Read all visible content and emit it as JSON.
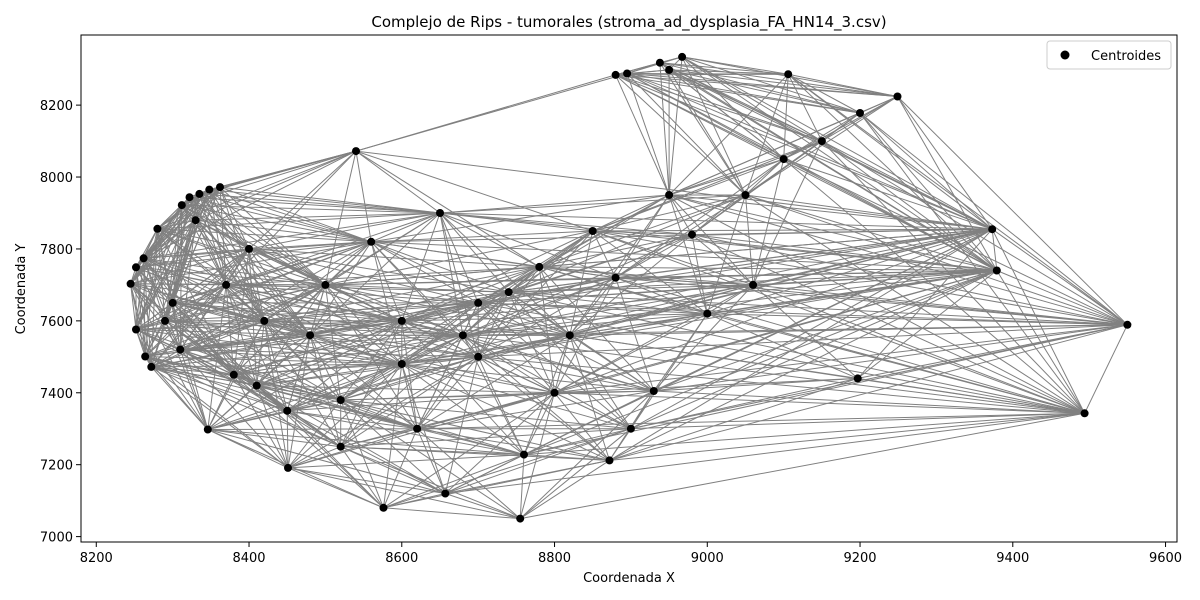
{
  "chart_data": {
    "type": "scatter",
    "title": "Complejo de Rips - tumorales (stroma_ad_dysplasia_FA_HN14_3.csv)",
    "xlabel": "Coordenada X",
    "ylabel": "Coordenada Y",
    "xlim": [
      8180,
      9615
    ],
    "ylim": [
      6985,
      8395
    ],
    "xticks": [
      8200,
      8400,
      8600,
      8800,
      9000,
      9200,
      9400,
      9600
    ],
    "yticks": [
      7000,
      7200,
      7400,
      7600,
      7800,
      8000,
      8200
    ],
    "grid": false,
    "legend": {
      "position": "top-right",
      "entries": [
        "Centroides"
      ]
    },
    "colors": {
      "points": "#000000",
      "edges": "#808080",
      "frame": "#000000"
    },
    "series": [
      {
        "name": "Centroides",
        "x": [
          8245,
          8252,
          8252,
          8262,
          8264,
          8272,
          8280,
          8312,
          8322,
          8335,
          8348,
          8362,
          8346,
          8451,
          8576,
          8657,
          8755,
          8760,
          8872,
          8880,
          8895,
          8938,
          8950,
          8967,
          9106,
          9249,
          9200,
          9197,
          9373,
          9379,
          9550,
          9494,
          8540,
          9000,
          8930,
          8900,
          8800,
          8700,
          8600,
          8500,
          8400,
          8330,
          8300,
          8380,
          8450,
          8520,
          8620,
          8700,
          8780,
          8850,
          9050,
          9100,
          9150,
          8950,
          8650,
          8560,
          8480,
          8420,
          8370,
          8290,
          8310,
          8410,
          8520,
          8600,
          8680,
          8740,
          8820,
          8880,
          8980,
          9060
        ],
        "y": [
          7703,
          7749,
          7576,
          7774,
          7501,
          7472,
          7856,
          7922,
          7944,
          7953,
          7965,
          7972,
          7298,
          7191,
          7080,
          7120,
          7050,
          7228,
          7212,
          8284,
          8288,
          8318,
          8298,
          8334,
          8286,
          8224,
          8178,
          7440,
          7855,
          7740,
          7589,
          7343,
          8072,
          7620,
          7405,
          7300,
          7400,
          7500,
          7600,
          7700,
          7800,
          7880,
          7650,
          7450,
          7350,
          7250,
          7300,
          7650,
          7750,
          7850,
          7950,
          8050,
          8100,
          7950,
          7900,
          7820,
          7560,
          7600,
          7700,
          7600,
          7520,
          7420,
          7380,
          7480,
          7560,
          7680,
          7560,
          7720,
          7840,
          7700
        ]
      }
    ]
  }
}
